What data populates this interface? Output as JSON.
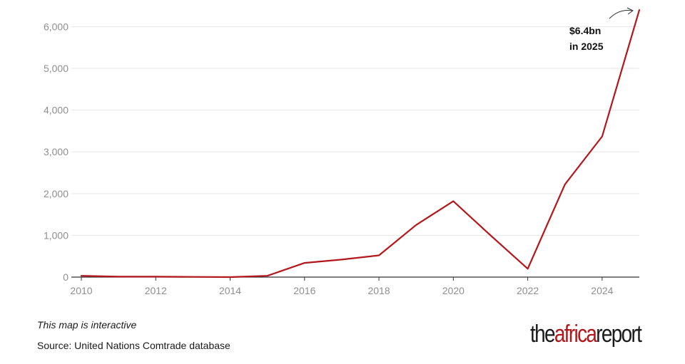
{
  "chart_data": {
    "type": "line",
    "title": "",
    "xlabel": "",
    "ylabel": "",
    "xlim": [
      2010,
      2025
    ],
    "ylim": [
      0,
      6400
    ],
    "x_ticks": [
      2010,
      2012,
      2014,
      2016,
      2018,
      2020,
      2022,
      2024
    ],
    "x_tick_labels": [
      "2010",
      "2012",
      "2014",
      "2016",
      "2018",
      "2020",
      "2022",
      "2024"
    ],
    "y_ticks": [
      0,
      1000,
      2000,
      3000,
      4000,
      5000,
      6000
    ],
    "y_tick_labels": [
      "0",
      "1,000",
      "2,000",
      "3,000",
      "4,000",
      "5,000",
      "6,000"
    ],
    "grid": "horizontal",
    "series": [
      {
        "color": "#b3161b",
        "x": [
          2010,
          2011,
          2012,
          2013,
          2014,
          2015,
          2016,
          2017,
          2018,
          2019,
          2020,
          2021,
          2022,
          2023,
          2024,
          2025
        ],
        "values": [
          30,
          10,
          10,
          5,
          0,
          30,
          340,
          420,
          520,
          1250,
          1820,
          1000,
          200,
          2220,
          3370,
          6400
        ]
      }
    ],
    "annotations": [
      {
        "line1": "$6.4bn",
        "line2": "in 2025",
        "x": 2025,
        "y": 6400
      }
    ]
  },
  "footer": {
    "note": "This map is interactive",
    "source": "Source: United Nations Comtrade database"
  },
  "brand": {
    "part1": "the",
    "part2": "africa",
    "part3": "report",
    "accent_color": "#b3161b"
  }
}
